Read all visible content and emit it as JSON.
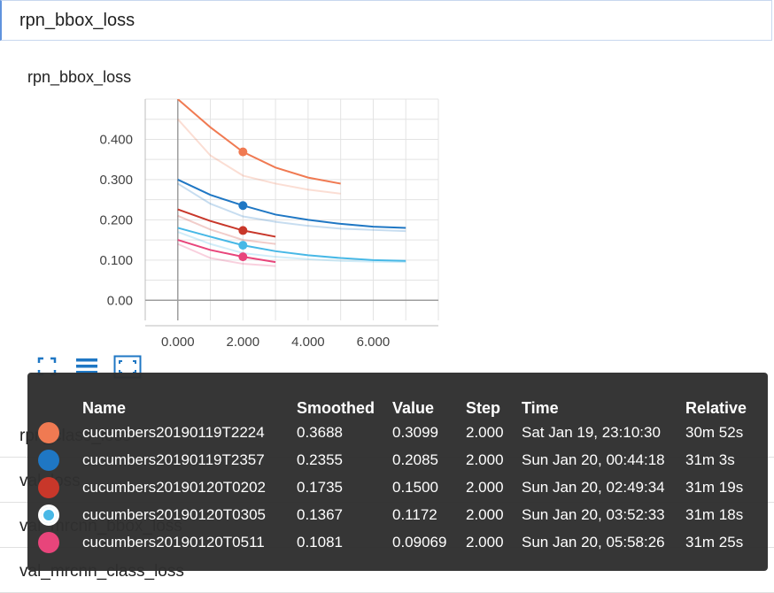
{
  "search": {
    "value": "rpn_bbox_loss"
  },
  "card": {
    "title": "rpn_bbox_loss"
  },
  "chart_data": {
    "type": "line",
    "title": "",
    "xlabel": "",
    "ylabel": "",
    "xlim": [
      -1,
      8
    ],
    "ylim": [
      -0.05,
      0.5
    ],
    "xticks": [
      0,
      2,
      4,
      6
    ],
    "xtick_labels": [
      "0.000",
      "2.000",
      "4.000",
      "6.000"
    ],
    "yticks": [
      0,
      0.1,
      0.2,
      0.3,
      0.4
    ],
    "ytick_labels": [
      "0.00",
      "0.100",
      "0.200",
      "0.300",
      "0.400"
    ],
    "grid": true,
    "series": [
      {
        "name": "cucumbers20190119T2224",
        "color": "#f07a52",
        "x": [
          0,
          1,
          2,
          3,
          4,
          5
        ],
        "smoothed": [
          0.5,
          0.43,
          0.3688,
          0.33,
          0.305,
          0.29
        ],
        "raw": [
          0.45,
          0.36,
          0.3099,
          0.29,
          0.275,
          0.265
        ]
      },
      {
        "name": "cucumbers20190119T2357",
        "color": "#1f77c4",
        "x": [
          0,
          1,
          2,
          3,
          4,
          5,
          6,
          7
        ],
        "smoothed": [
          0.3,
          0.262,
          0.2355,
          0.213,
          0.2,
          0.19,
          0.183,
          0.18
        ],
        "raw": [
          0.29,
          0.24,
          0.2085,
          0.195,
          0.185,
          0.178,
          0.175,
          0.172
        ]
      },
      {
        "name": "cucumbers20190120T0202",
        "color": "#c8372a",
        "x": [
          0,
          1,
          2,
          3
        ],
        "smoothed": [
          0.226,
          0.197,
          0.1735,
          0.158
        ],
        "raw": [
          0.21,
          0.176,
          0.15,
          0.14
        ]
      },
      {
        "name": "cucumbers20190120T0305",
        "color": "#47b8e6",
        "x": [
          0,
          1,
          2,
          3,
          4,
          5,
          6,
          7
        ],
        "smoothed": [
          0.18,
          0.158,
          0.1367,
          0.122,
          0.112,
          0.105,
          0.1,
          0.098
        ],
        "raw": [
          0.17,
          0.14,
          0.1172,
          0.108,
          0.102,
          0.098,
          0.096,
          0.095
        ]
      },
      {
        "name": "cucumbers20190120T0511",
        "color": "#e8457b",
        "x": [
          0,
          1,
          2,
          3
        ],
        "smoothed": [
          0.15,
          0.125,
          0.1081,
          0.095
        ],
        "raw": [
          0.14,
          0.105,
          0.09069,
          0.085
        ]
      }
    ],
    "hover_step": 2
  },
  "toolbar": {
    "fit_icon": "fit-domain-icon",
    "list_icon": "toggle-log-icon",
    "expand_icon": "expand-chart-icon"
  },
  "list": [
    {
      "label": "rpn_class_loss"
    },
    {
      "label": "val_loss"
    },
    {
      "label": "val_mrcnn_bbox_loss"
    },
    {
      "label": "val_mrcnn_class_loss"
    }
  ],
  "tooltip": {
    "headers": {
      "name": "Name",
      "smoothed": "Smoothed",
      "value": "Value",
      "step": "Step",
      "time": "Time",
      "relative": "Relative"
    },
    "rows": [
      {
        "color": "#f07a52",
        "name": "cucumbers20190119T2224",
        "smoothed": "0.3688",
        "value": "0.3099",
        "step": "2.000",
        "time": "Sat Jan 19, 23:10:30",
        "relative": "30m 52s"
      },
      {
        "color": "#1f77c4",
        "name": "cucumbers20190119T2357",
        "smoothed": "0.2355",
        "value": "0.2085",
        "step": "2.000",
        "time": "Sun Jan 20, 00:44:18",
        "relative": "31m 3s"
      },
      {
        "color": "#c8372a",
        "name": "cucumbers20190120T0202",
        "smoothed": "0.1735",
        "value": "0.1500",
        "step": "2.000",
        "time": "Sun Jan 20, 02:49:34",
        "relative": "31m 19s"
      },
      {
        "color": "#47b8e6",
        "name": "cucumbers20190120T0305",
        "smoothed": "0.1367",
        "value": "0.1172",
        "step": "2.000",
        "time": "Sun Jan 20, 03:52:33",
        "relative": "31m 18s"
      },
      {
        "color": "#e8457b",
        "name": "cucumbers20190120T0511",
        "smoothed": "0.1081",
        "value": "0.09069",
        "step": "2.000",
        "time": "Sun Jan 20, 05:58:26",
        "relative": "31m 25s"
      }
    ]
  }
}
